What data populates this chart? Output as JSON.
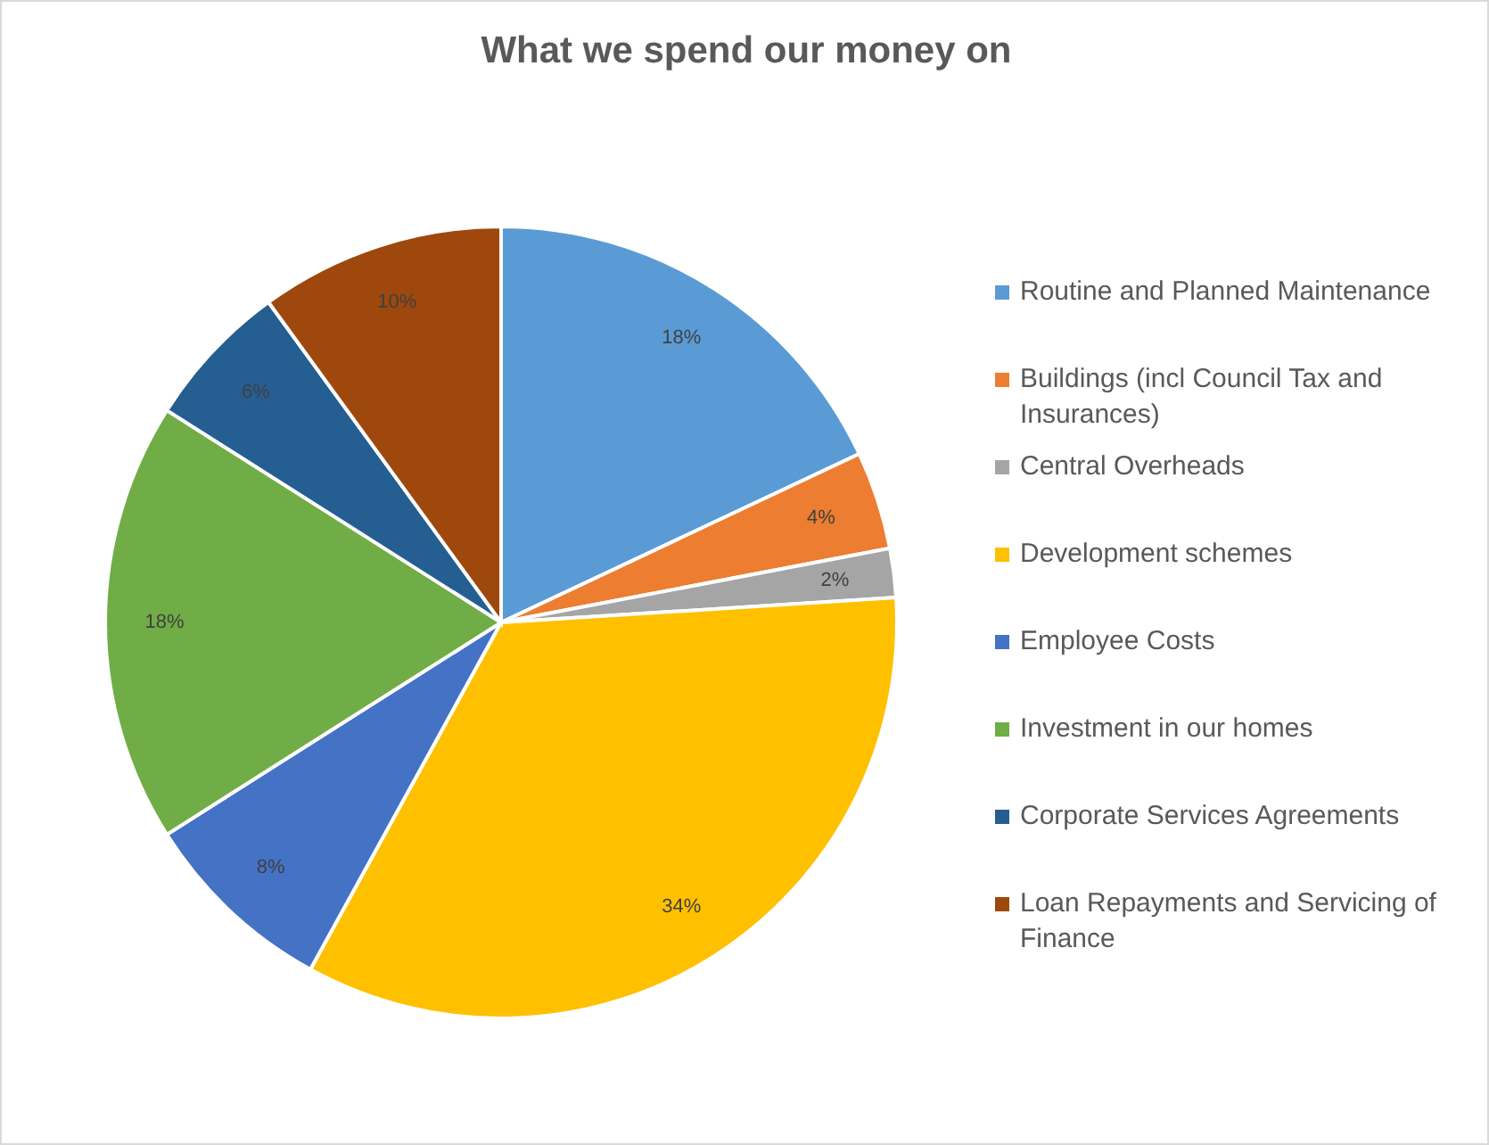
{
  "chart_data": {
    "type": "pie",
    "title": "What we spend our money on",
    "categories": [
      "Routine and Planned Maintenance",
      "Buildings (incl Council Tax and Insurances)",
      "Central Overheads",
      "Development schemes",
      "Employee Costs",
      "Investment in our homes",
      "Corporate Services Agreements",
      "Loan Repayments and Servicing of Finance"
    ],
    "values": [
      18,
      4,
      2,
      34,
      8,
      18,
      6,
      10
    ],
    "colors": [
      "#5b9bd5",
      "#ed7d31",
      "#a5a5a5",
      "#ffc000",
      "#4472c4",
      "#70ad47",
      "#255e91",
      "#9e480e"
    ],
    "value_labels": [
      "18%",
      "4%",
      "2%",
      "34%",
      "8%",
      "18%",
      "6%",
      "10%"
    ],
    "legend": "right"
  }
}
